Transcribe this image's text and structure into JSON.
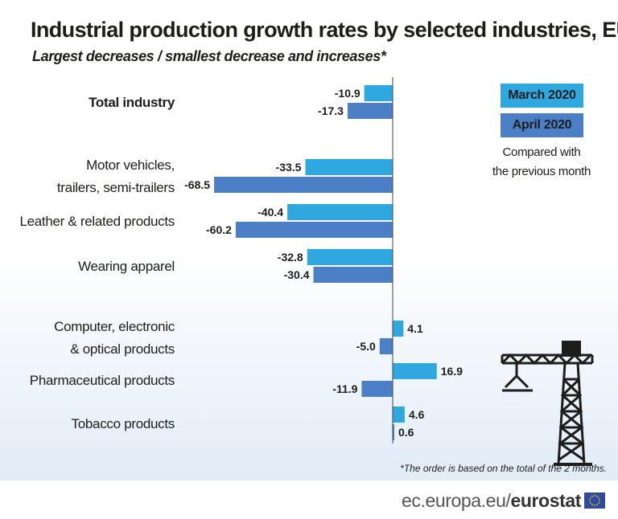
{
  "header": {
    "title": "Industrial production growth rates by selected industries, EU",
    "subtitle": "Largest decreases / smallest decrease and increases*"
  },
  "legend": {
    "items": [
      {
        "label": "March 2020",
        "color": "#2fa8e0"
      },
      {
        "label": "April 2020",
        "color": "#4c80c6"
      }
    ],
    "note_line1": "Compared with",
    "note_line2": "the previous month"
  },
  "footer": {
    "footnote": "*The order is based on the total of the 2 months.",
    "brand_prefix": "ec.europa.eu/",
    "brand_name": "eurostat"
  },
  "chart_data": {
    "type": "bar",
    "orientation": "horizontal",
    "categories": [
      {
        "lines": [
          "Total industry"
        ],
        "bold": true
      },
      {
        "lines": [
          "Motor vehicles,",
          "trailers, semi-trailers"
        ],
        "bold": false
      },
      {
        "lines": [
          "Leather & related products"
        ],
        "bold": false
      },
      {
        "lines": [
          "Wearing apparel"
        ],
        "bold": false
      },
      {
        "lines": [
          "Computer, electronic",
          "& optical products"
        ],
        "bold": false
      },
      {
        "lines": [
          "Pharmaceutical products"
        ],
        "bold": false
      },
      {
        "lines": [
          "Tobacco products"
        ],
        "bold": false
      }
    ],
    "series": [
      {
        "name": "March 2020",
        "color": "#2fa8e0",
        "values": [
          -10.9,
          -33.5,
          -40.4,
          -32.8,
          4.1,
          16.9,
          4.6
        ]
      },
      {
        "name": "April 2020",
        "color": "#4c80c6",
        "values": [
          -17.3,
          -68.5,
          -60.2,
          -30.4,
          -5.0,
          -11.9,
          0.6
        ]
      }
    ],
    "legend_position": "top-right",
    "grid": false
  }
}
